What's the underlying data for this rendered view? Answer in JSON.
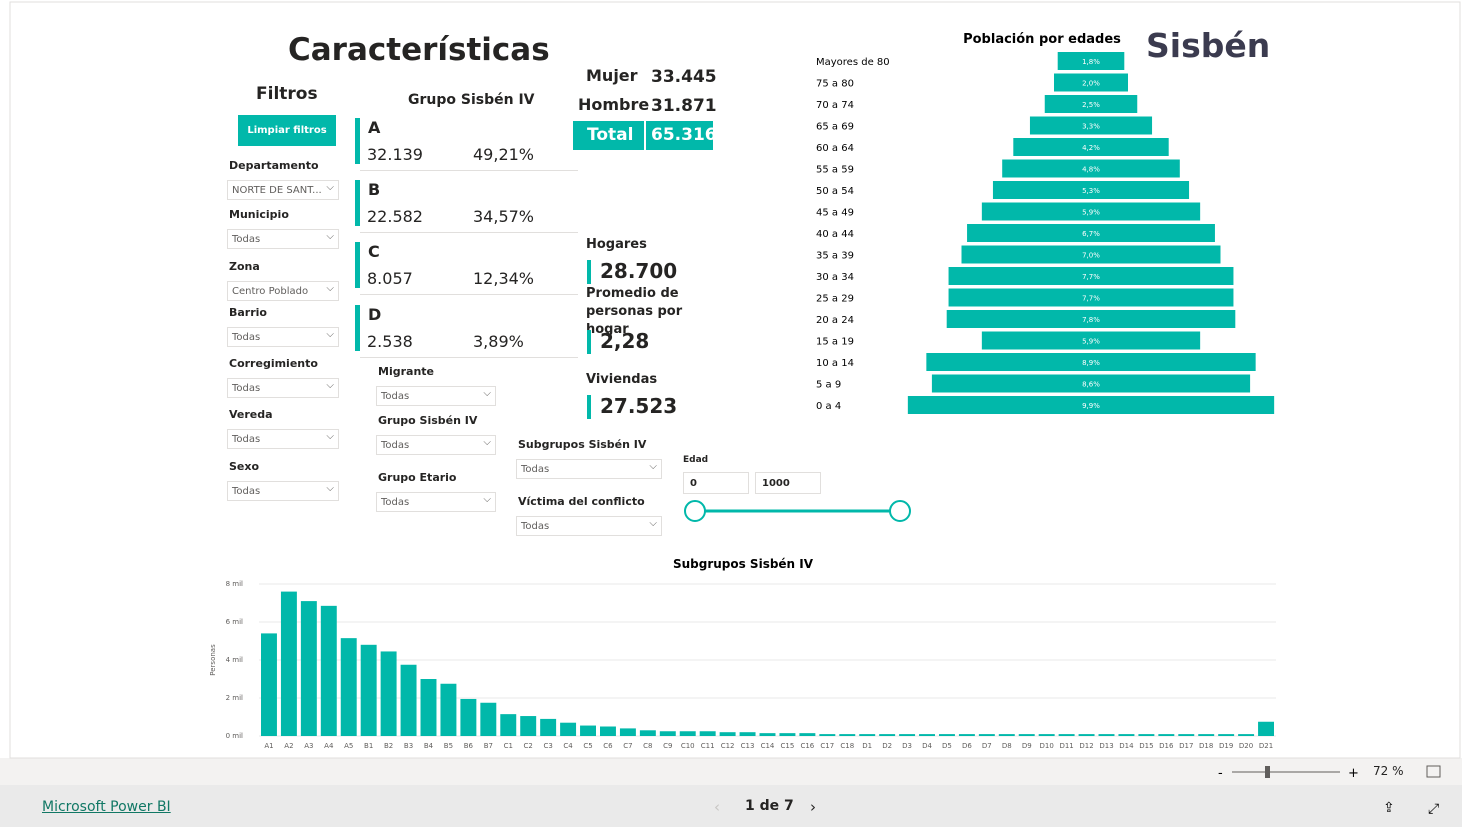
{
  "header": {
    "title": "Características",
    "logo": "Sisbén"
  },
  "filters": {
    "title": "Filtros",
    "clear": "Limpiar filtros",
    "items": [
      {
        "label": "Departamento",
        "value": "NORTE DE SANT..."
      },
      {
        "label": "Municipio",
        "value": "Todas"
      },
      {
        "label": "Zona",
        "value": "Centro Poblado"
      },
      {
        "label": "Barrio",
        "value": "Todas"
      },
      {
        "label": "Corregimiento",
        "value": "Todas"
      },
      {
        "label": "Vereda",
        "value": "Todas"
      },
      {
        "label": "Sexo",
        "value": "Todas"
      }
    ]
  },
  "groups": {
    "title": "Grupo Sisbén IV",
    "items": [
      {
        "letter": "A",
        "count": "32.139",
        "pct": "49,21%"
      },
      {
        "letter": "B",
        "count": "22.582",
        "pct": "34,57%"
      },
      {
        "letter": "C",
        "count": "8.057",
        "pct": "12,34%"
      },
      {
        "letter": "D",
        "count": "2.538",
        "pct": "3,89%"
      }
    ]
  },
  "totals": {
    "mujer_label": "Mujer",
    "mujer": "33.445",
    "hombre_label": "Hombre",
    "hombre": "31.871",
    "total_label": "Total",
    "total": "65.316"
  },
  "kpis": [
    {
      "label": "Hogares",
      "value": "28.700"
    },
    {
      "label": "Promedio de personas por hogar",
      "value": "2,28"
    },
    {
      "label": "Viviendas",
      "value": "27.523"
    }
  ],
  "slicers": [
    {
      "label": "Migrante",
      "value": "Todas"
    },
    {
      "label": "Grupo Sisbén IV",
      "value": "Todas"
    },
    {
      "label": "Grupo Etario",
      "value": "Todas"
    },
    {
      "label": "Subgrupos Sisbén IV",
      "value": "Todas"
    },
    {
      "label": "Víctima del conflicto",
      "value": "Todas"
    }
  ],
  "age": {
    "label": "Edad",
    "min": "0",
    "max": "1000"
  },
  "footer": {
    "brand": "Microsoft Power BI",
    "page": "1 de 7",
    "zoom": "72 %"
  },
  "chart_data": [
    {
      "type": "pyramid",
      "title": "Población por edades",
      "color": "#01b8aa",
      "categories": [
        "Mayores de 80",
        "75 a 80",
        "70 a 74",
        "65 a 69",
        "60 a 64",
        "55 a 59",
        "50 a 54",
        "45 a 49",
        "40 a 44",
        "35 a 39",
        "30 a 34",
        "25 a 29",
        "20 a 24",
        "15 a 19",
        "10 a 14",
        "5 a 9",
        "0 a 4"
      ],
      "values": [
        1.8,
        2.0,
        2.5,
        3.3,
        4.2,
        4.8,
        5.3,
        5.9,
        6.7,
        7.0,
        7.7,
        7.7,
        7.8,
        5.9,
        8.9,
        8.6,
        9.9
      ],
      "value_labels": [
        "1,8%",
        "2,0%",
        "2,5%",
        "3,3%",
        "4,2%",
        "4,8%",
        "5,3%",
        "5,9%",
        "6,7%",
        "7,0%",
        "7,7%",
        "7,7%",
        "7,8%",
        "5,9%",
        "8,9%",
        "8,6%",
        "9,9%"
      ]
    },
    {
      "type": "bar",
      "title": "Subgrupos Sisbén IV",
      "y_label": "Personas",
      "color": "#01b8aa",
      "grid": true,
      "categories": [
        "A1",
        "A2",
        "A3",
        "A4",
        "A5",
        "B1",
        "B2",
        "B3",
        "B4",
        "B5",
        "B6",
        "B7",
        "C1",
        "C2",
        "C3",
        "C4",
        "C5",
        "C6",
        "C7",
        "C8",
        "C9",
        "C10",
        "C11",
        "C12",
        "C13",
        "C14",
        "C15",
        "C16",
        "C17",
        "C18",
        "D1",
        "D2",
        "D3",
        "D4",
        "D5",
        "D6",
        "D7",
        "D8",
        "D9",
        "D10",
        "D11",
        "D12",
        "D13",
        "D14",
        "D15",
        "D16",
        "D17",
        "D18",
        "D19",
        "D20",
        "D21"
      ],
      "values": [
        5400,
        7600,
        7100,
        6850,
        5150,
        4800,
        4450,
        3750,
        3000,
        2750,
        1950,
        1750,
        1150,
        1050,
        900,
        700,
        550,
        500,
        400,
        300,
        250,
        250,
        250,
        200,
        200,
        150,
        150,
        150,
        100,
        100,
        100,
        100,
        100,
        100,
        100,
        100,
        100,
        100,
        100,
        100,
        100,
        100,
        100,
        100,
        100,
        100,
        100,
        100,
        100,
        100,
        750
      ],
      "ylim": [
        0,
        8000
      ],
      "yticks": [
        {
          "value": 0,
          "label": "0 mil"
        },
        {
          "value": 2000,
          "label": "2 mil"
        },
        {
          "value": 4000,
          "label": "4 mil"
        },
        {
          "value": 6000,
          "label": "6 mil"
        },
        {
          "value": 8000,
          "label": "8 mil"
        }
      ]
    }
  ]
}
